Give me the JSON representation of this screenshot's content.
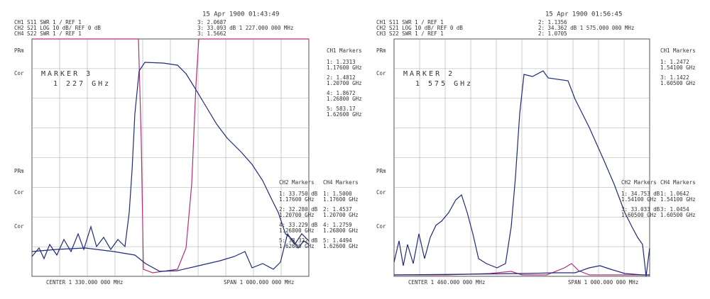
{
  "panels": [
    {
      "timestamp": "15 Apr 1900 01:43:49",
      "channels": [
        "CH1 S11 SWR 1 / REF 1",
        "CH2 S21 LOG 10 dB/ REF 0 dB",
        "CH4 S22 SWR 1 / REF 1"
      ],
      "readouts": [
        "3: 2.0687",
        "3: 33.093 dB 1 227.000 000 MHz",
        "3: 1.5662"
      ],
      "side_labels": [
        "PRm",
        "Cor",
        "PRm",
        "Cor",
        "Cor"
      ],
      "marker": {
        "title": "MARKER 3",
        "freq": "1 227 GHz"
      },
      "marker_tables": [
        {
          "title": "CH1 Markers",
          "entries": [
            [
              "1: 1.2313",
              "1.17600 GHz"
            ],
            [
              "2: 1.4812",
              "1.20700 GHz"
            ],
            [
              "4: 1.8672",
              "1.26800 GHz"
            ],
            [
              "5: 583.17",
              "1.62600 GHz"
            ]
          ]
        },
        {
          "title": "CH2 Markers",
          "entries": [
            [
              "1: 33.750 dB",
              "1.17600 GHz"
            ],
            [
              "2: 32.280 dB",
              "1.20700 GHz"
            ],
            [
              "4: 33.229 dB",
              "1.26800 GHz"
            ],
            [
              "5: 33.322 dB",
              "1.62600 GHz"
            ]
          ]
        },
        {
          "title": "CH4 Markers",
          "entries": [
            [
              "1: 1.5000",
              "1.17600 GHz"
            ],
            [
              "2: 1.4537",
              "1.20700 GHz"
            ],
            [
              "4: 1.2759",
              "1.26800 GHz"
            ],
            [
              "5: 1.4494",
              "1.62600 GHz"
            ]
          ]
        }
      ],
      "footer": {
        "center": "CENTER 1 330.000 000 MHz",
        "span": "SPAN 1 000.000 000 MHz"
      }
    },
    {
      "timestamp": "15 Apr 1900 01:56:45",
      "channels": [
        "CH1 S11 SWR 1 / REF 1",
        "CH2 S21 LOG 10 dB/ REF 0 dB",
        "CH3 S22 SWR 1 / REF 1"
      ],
      "readouts": [
        "2: 1.1356",
        "2: 34.362 dB 1 575.000 000 MHz",
        "2: 1.0705"
      ],
      "side_labels": [
        "PRm",
        "Cor",
        "PRm",
        "Cor",
        "Cor"
      ],
      "marker": {
        "title": "MARKER 2",
        "freq": "1 575 GHz"
      },
      "marker_tables": [
        {
          "title": "CH1 Markers",
          "entries": [
            [
              "1: 1.2472",
              "1.54100 GHz"
            ],
            [
              "3: 1.1422",
              "1.60500 GHz"
            ]
          ]
        },
        {
          "title": "CH2 Markers",
          "entries": [
            [
              "1: 34.753 dB",
              "1.54100 GHz"
            ],
            [
              "3: 33.033 dB",
              "1.60500 GHz"
            ]
          ]
        },
        {
          "title": "CH4 Markers",
          "entries": [
            [
              "1: 1.0642",
              "1.54100 GHz"
            ],
            [
              "3: 1.0454",
              "1.60500 GHz"
            ]
          ]
        }
      ],
      "footer": {
        "center": "CENTER 1 460.000 000 MHz",
        "span": "SPAN 1 000.000 000 MHz"
      }
    }
  ]
}
